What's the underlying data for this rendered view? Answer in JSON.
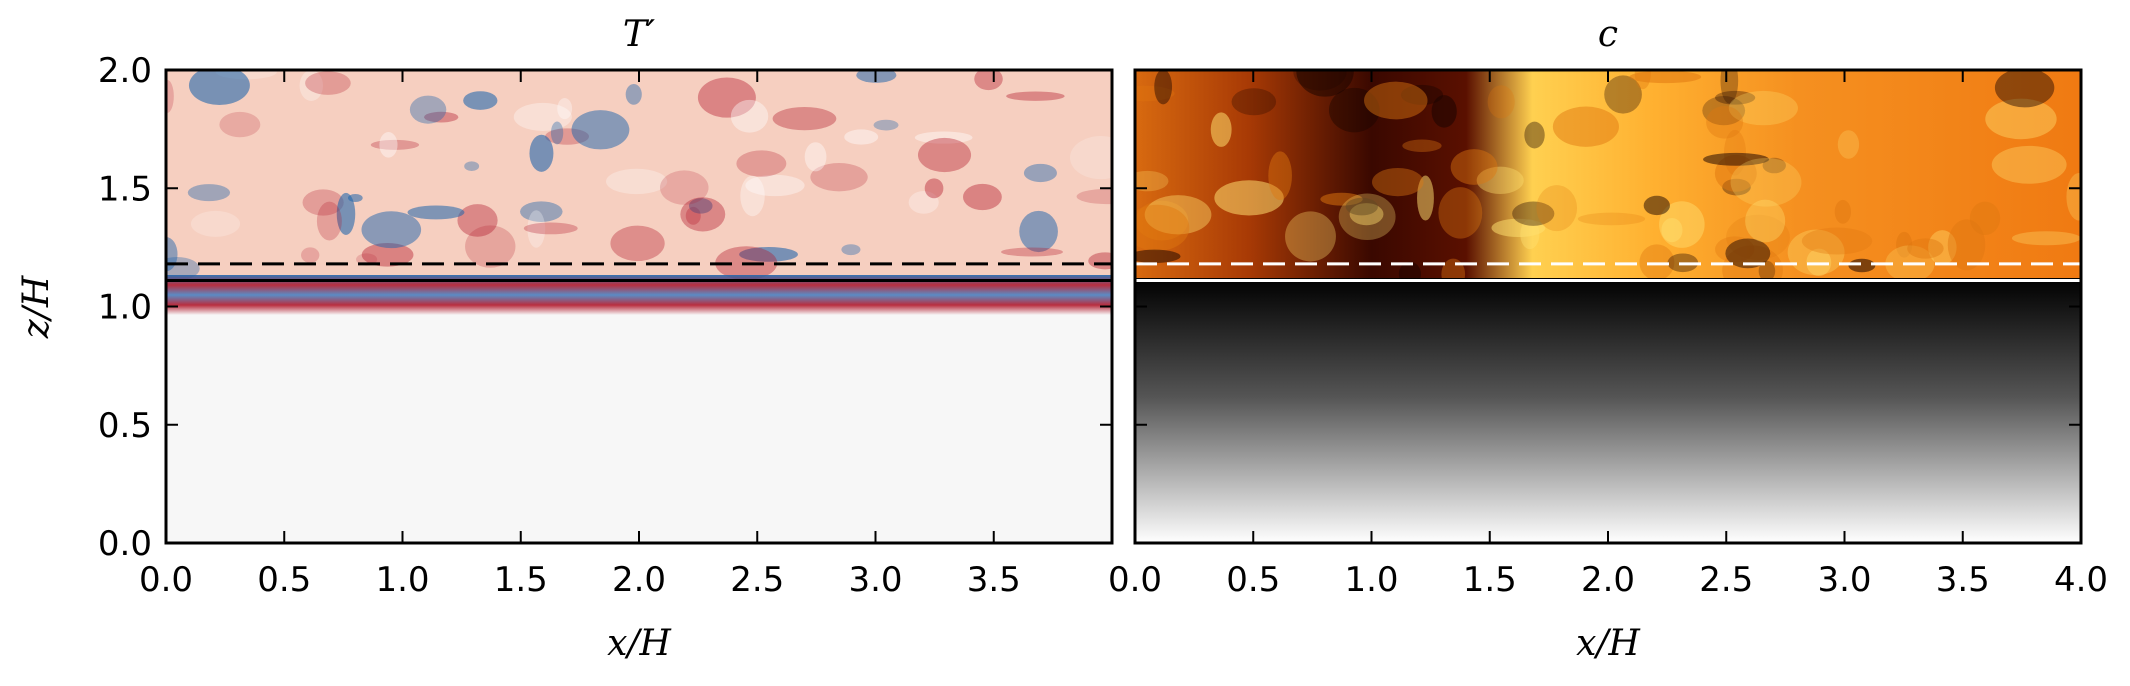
{
  "chart_data": [
    {
      "type": "heatmap",
      "title": "T′",
      "xlabel": "x/H",
      "ylabel": "z/H",
      "xlim": [
        0,
        4.0
      ],
      "ylim": [
        0,
        2.0
      ],
      "x_ticks": [
        "0.0",
        "0.5",
        "1.0",
        "1.5",
        "2.0",
        "2.5",
        "3.0",
        "3.5"
      ],
      "x_tick_values": [
        0,
        0.5,
        1.0,
        1.5,
        2.0,
        2.5,
        3.0,
        3.5
      ],
      "y_ticks": [
        "0.0",
        "0.5",
        "1.0",
        "1.5",
        "2.0"
      ],
      "y_tick_values": [
        0,
        0.5,
        1.0,
        1.5,
        2.0
      ],
      "colormap": "diverging red-blue",
      "colors": {
        "positive": "#b2182b",
        "negative": "#2166ac",
        "neutral": "#f7f7f7",
        "upper_fill": "#f6cfc0"
      },
      "reference_lines": [
        {
          "z": 1.18,
          "style": "dashed",
          "color": "#000000"
        },
        {
          "z": 1.11,
          "style": "solid",
          "color": "#000000"
        }
      ]
    },
    {
      "type": "heatmap",
      "title": "c",
      "xlabel": "x/H",
      "ylabel": "",
      "xlim": [
        0,
        4.0
      ],
      "ylim": [
        0,
        2.0
      ],
      "x_ticks": [
        "0.0",
        "0.5",
        "1.0",
        "1.5",
        "2.0",
        "2.5",
        "3.0",
        "3.5",
        "4.0"
      ],
      "x_tick_values": [
        0,
        0.5,
        1.0,
        1.5,
        2.0,
        2.5,
        3.0,
        3.5,
        4.0
      ],
      "colormap": "afmhot",
      "colors": {
        "dark": "#1a0400",
        "mid": "#e07810",
        "bright": "#ffe070",
        "lower_top": "#000000",
        "lower_bottom": "#ffffff"
      },
      "reference_lines": [
        {
          "z": 1.18,
          "style": "dashed",
          "color": "#ffffff"
        },
        {
          "z": 1.11,
          "style": "solid",
          "color": "#ffffff"
        }
      ]
    }
  ]
}
